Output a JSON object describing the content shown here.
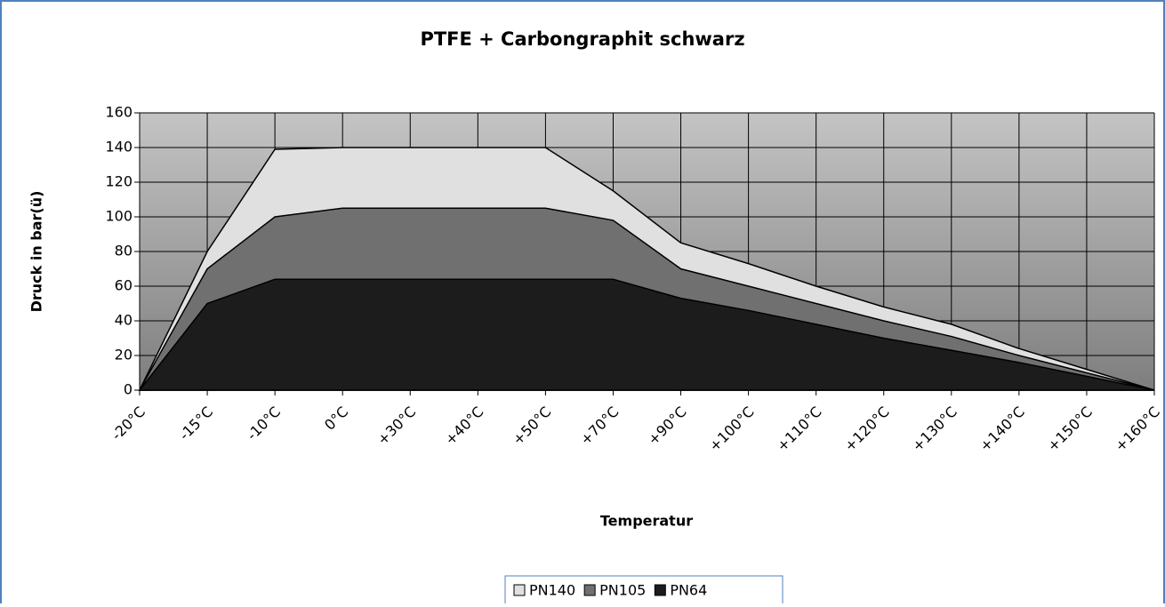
{
  "chart_data": {
    "type": "area",
    "title": "PTFE + Carbongraphit schwarz",
    "x_label": "Temperatur",
    "y_label": "Druck in bar(ü)",
    "categories": [
      "-20°C",
      "-15°C",
      "-10°C",
      "0°C",
      "+30°C",
      "+40°C",
      "+50°C",
      "+70°C",
      "+90°C",
      "+100°C",
      "+110°C",
      "+120°C",
      "+130°C",
      "+140°C",
      "+150°C",
      "+160°C"
    ],
    "series": [
      {
        "name": "PN140",
        "color": "#e0e0e0",
        "values": [
          0,
          80,
          139,
          140,
          140,
          140,
          140,
          115,
          85,
          73,
          60,
          48,
          38,
          24,
          12,
          0
        ]
      },
      {
        "name": "PN105",
        "color": "#707070",
        "values": [
          0,
          70,
          100,
          105,
          105,
          105,
          105,
          98,
          70,
          60,
          50,
          40,
          31,
          20,
          10,
          0
        ]
      },
      {
        "name": "PN64",
        "color": "#1c1c1c",
        "values": [
          0,
          50,
          64,
          64,
          64,
          64,
          64,
          64,
          53,
          46,
          38,
          30,
          23,
          16,
          8,
          0
        ]
      }
    ],
    "ylim": [
      0,
      160
    ],
    "yticks": [
      0,
      20,
      40,
      60,
      80,
      100,
      120,
      140,
      160
    ],
    "grid": true,
    "legend": "bottom"
  }
}
